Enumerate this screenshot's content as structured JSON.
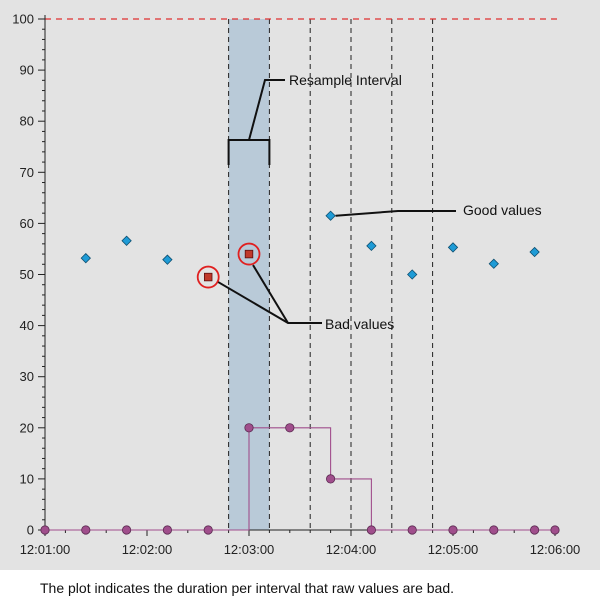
{
  "chart_data": {
    "type": "scatter",
    "title": "",
    "xlabel": "",
    "ylabel": "",
    "x_ticks": [
      "12:01:00",
      "12:02:00",
      "12:03:00",
      "12:04:00",
      "12:05:00",
      "12:06:00"
    ],
    "y_ticks": [
      "0",
      "10",
      "20",
      "30",
      "40",
      "50",
      "60",
      "70",
      "80",
      "90",
      "100"
    ],
    "xlim": [
      "12:01:00",
      "12:06:00"
    ],
    "ylim": [
      0,
      100
    ],
    "grid": false,
    "limit_line": 100,
    "resample_interval": {
      "start": "12:02:48",
      "end": "12:03:12"
    },
    "interval_boundaries": [
      "12:02:48",
      "12:03:12",
      "12:03:36",
      "12:04:00",
      "12:04:24",
      "12:04:48"
    ],
    "series": [
      {
        "name": "Good values",
        "x": [
          "12:01:24",
          "12:01:48",
          "12:02:12",
          "12:03:48",
          "12:04:12",
          "12:04:36",
          "12:05:00",
          "12:05:24",
          "12:05:48"
        ],
        "values": [
          53.2,
          56.6,
          52.9,
          61.5,
          55.6,
          50.0,
          55.3,
          52.1,
          54.4
        ]
      },
      {
        "name": "Bad values",
        "x": [
          "12:02:36",
          "12:03:00"
        ],
        "values": [
          49.5,
          54.0
        ]
      },
      {
        "x": [
          "12:01:00",
          "12:01:24",
          "12:01:48",
          "12:02:12",
          "12:02:36",
          "12:03:00",
          "12:03:24",
          "12:03:48",
          "12:04:12",
          "12:04:36",
          "12:05:00",
          "12:05:24",
          "12:05:48",
          "12:06:00"
        ],
        "values": [
          0,
          0,
          0,
          0,
          0,
          20,
          20,
          10,
          0,
          0,
          0,
          0,
          0,
          0
        ]
      }
    ],
    "annotations": [
      "Resample Interval",
      "Good values",
      "Bad values"
    ]
  },
  "caption": "The plot indicates the duration per interval that raw values are bad.",
  "colors": {
    "good": "#1e9bd6",
    "bad": "#c0392b",
    "duration": "#a04e8c",
    "limit": "#e03030",
    "band": "#b9cad8",
    "highlight": "#e02020"
  }
}
